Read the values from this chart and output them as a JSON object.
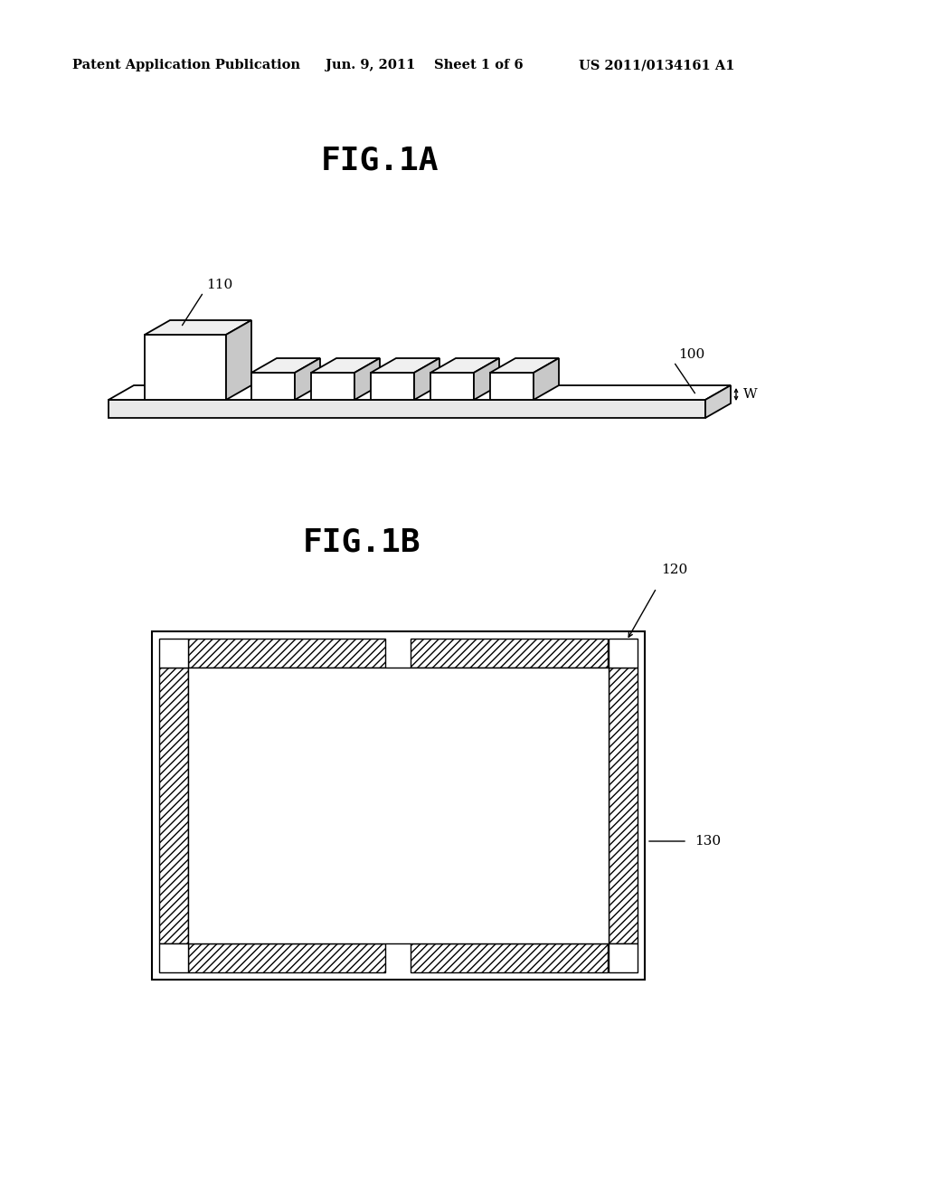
{
  "background_color": "#ffffff",
  "header_text": "Patent Application Publication",
  "header_date": "Jun. 9, 2011",
  "header_sheet": "Sheet 1 of 6",
  "header_patent": "US 2011/0134161 A1",
  "fig1a_label": "FIG.1A",
  "fig1b_label": "FIG.1B",
  "label_110": "110",
  "label_100": "100",
  "label_W": "W",
  "label_120": "120",
  "label_130": "130",
  "line_color": "#000000"
}
